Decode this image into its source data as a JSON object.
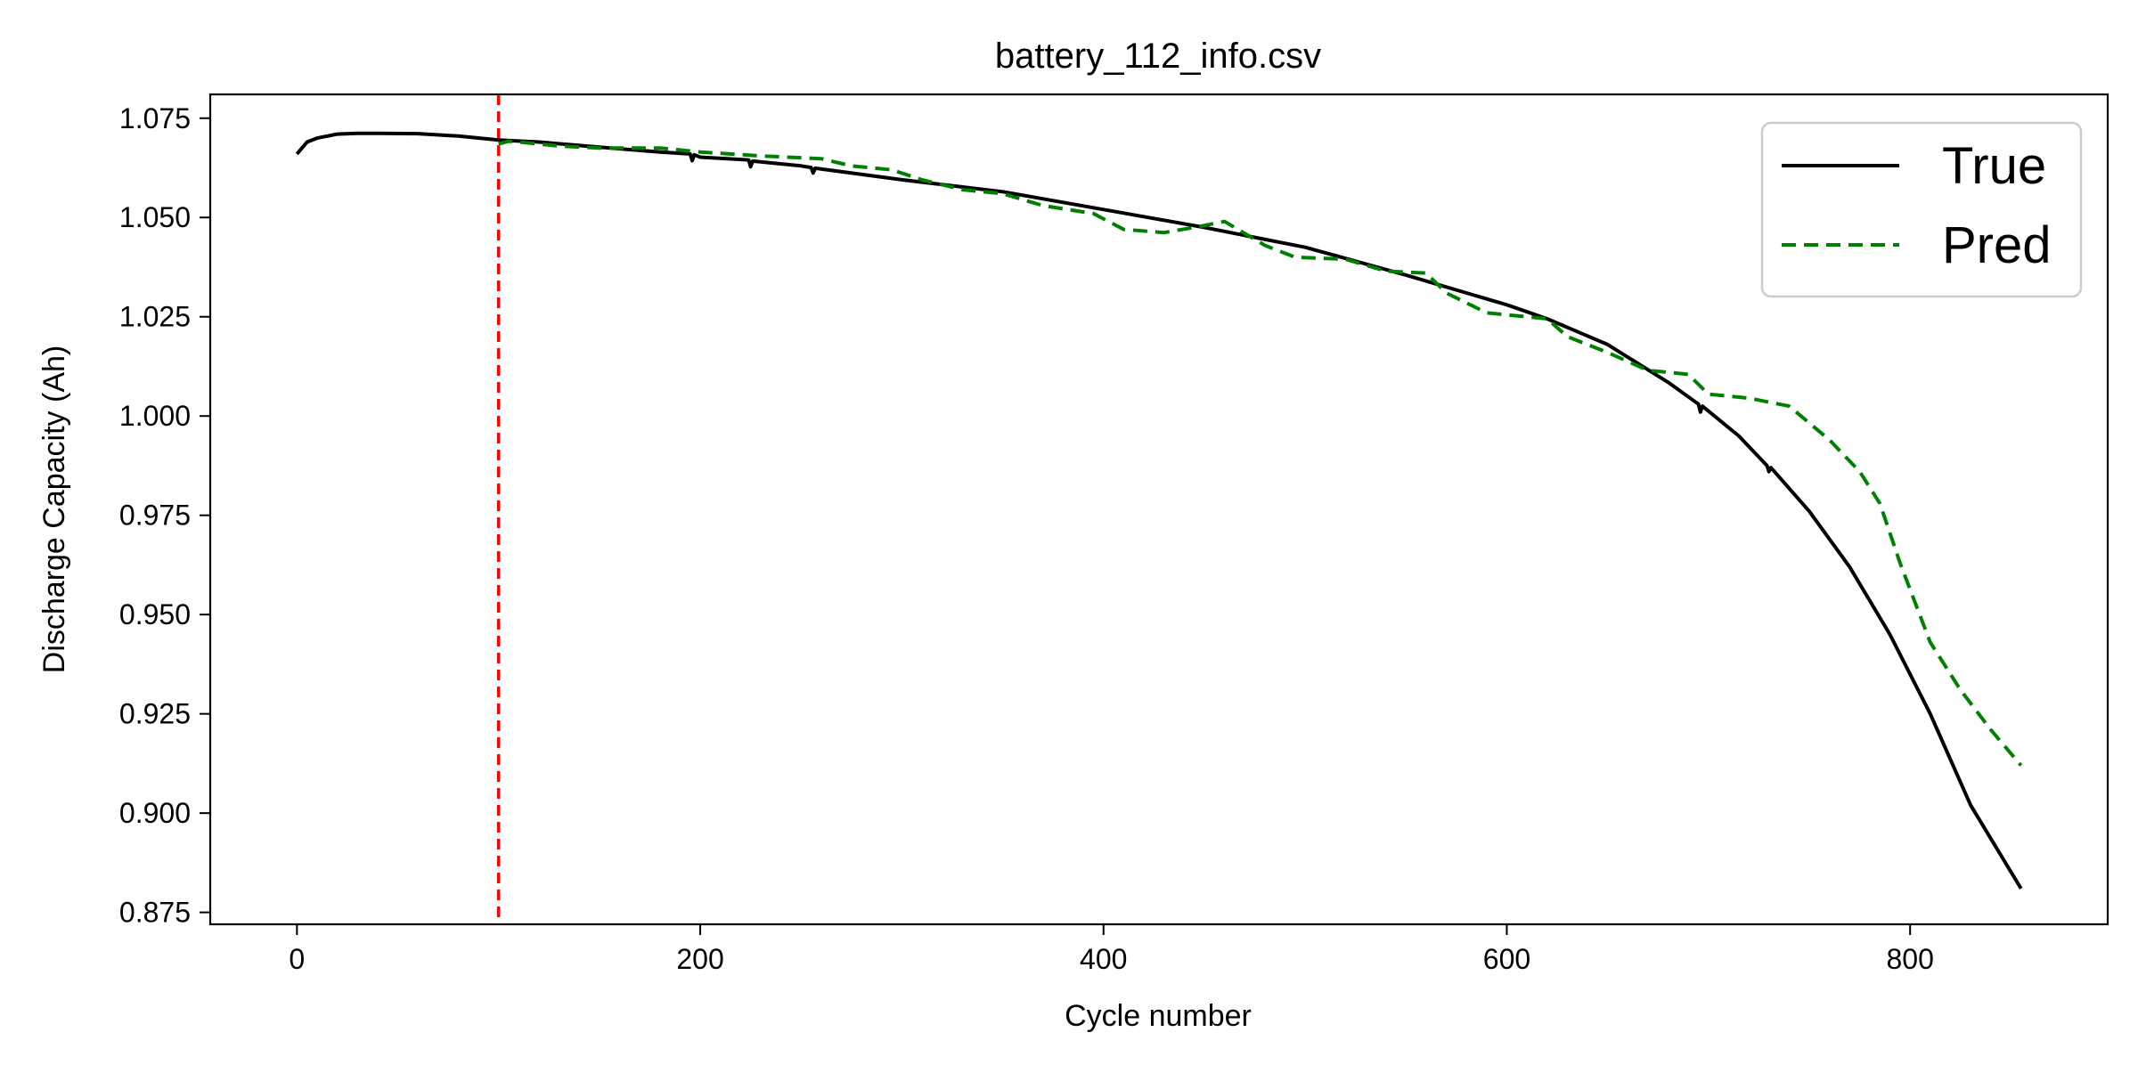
{
  "chart_data": {
    "type": "line",
    "title": "battery_112_info.csv",
    "xlabel": "Cycle number",
    "ylabel": "Discharge Capacity (Ah)",
    "xlim": [
      -43,
      898
    ],
    "ylim": [
      0.872,
      1.081
    ],
    "x_ticks": [
      0,
      200,
      400,
      600,
      800
    ],
    "y_ticks": [
      0.875,
      0.9,
      0.925,
      0.95,
      0.975,
      1.0,
      1.025,
      1.05,
      1.075
    ],
    "grid": false,
    "legend_position": "top-right",
    "vertical_marker": {
      "x": 100,
      "color": "#ff0000",
      "style": "dashed"
    },
    "series": [
      {
        "name": "True",
        "color": "#000000",
        "style": "solid",
        "points": [
          [
            0,
            1.066
          ],
          [
            5,
            1.069
          ],
          [
            10,
            1.07
          ],
          [
            20,
            1.071
          ],
          [
            30,
            1.0712
          ],
          [
            40,
            1.0712
          ],
          [
            60,
            1.0711
          ],
          [
            80,
            1.0705
          ],
          [
            100,
            1.0695
          ],
          [
            120,
            1.069
          ],
          [
            150,
            1.0677
          ],
          [
            180,
            1.0665
          ],
          [
            195,
            1.066
          ],
          [
            196,
            1.0643
          ],
          [
            197,
            1.0658
          ],
          [
            200,
            1.0652
          ],
          [
            224,
            1.0645
          ],
          [
            225,
            1.0628
          ],
          [
            226,
            1.0642
          ],
          [
            250,
            1.063
          ],
          [
            255,
            1.0626
          ],
          [
            256,
            1.0612
          ],
          [
            257,
            1.0624
          ],
          [
            300,
            1.0595
          ],
          [
            350,
            1.0565
          ],
          [
            400,
            1.052
          ],
          [
            450,
            1.0475
          ],
          [
            500,
            1.0425
          ],
          [
            550,
            1.0355
          ],
          [
            580,
            1.031
          ],
          [
            600,
            1.028
          ],
          [
            620,
            1.0245
          ],
          [
            650,
            1.018
          ],
          [
            680,
            1.0085
          ],
          [
            695,
            1.003
          ],
          [
            696,
            1.001
          ],
          [
            697,
            1.0025
          ],
          [
            715,
            0.995
          ],
          [
            729,
            0.9875
          ],
          [
            730,
            0.986
          ],
          [
            731,
            0.987
          ],
          [
            750,
            0.976
          ],
          [
            770,
            0.962
          ],
          [
            790,
            0.945
          ],
          [
            810,
            0.925
          ],
          [
            830,
            0.902
          ],
          [
            855,
            0.881
          ]
        ]
      },
      {
        "name": "Pred",
        "color": "#008000",
        "style": "dashed",
        "points": [
          [
            100,
            1.0685
          ],
          [
            105,
            1.0692
          ],
          [
            110,
            1.069
          ],
          [
            130,
            1.068
          ],
          [
            150,
            1.0675
          ],
          [
            180,
            1.0675
          ],
          [
            200,
            1.0665
          ],
          [
            230,
            1.0655
          ],
          [
            260,
            1.0648
          ],
          [
            275,
            1.063
          ],
          [
            295,
            1.062
          ],
          [
            310,
            1.0595
          ],
          [
            330,
            1.057
          ],
          [
            350,
            1.056
          ],
          [
            370,
            1.053
          ],
          [
            395,
            1.051
          ],
          [
            410,
            1.047
          ],
          [
            430,
            1.0462
          ],
          [
            445,
            1.0475
          ],
          [
            460,
            1.049
          ],
          [
            480,
            1.043
          ],
          [
            495,
            1.04
          ],
          [
            520,
            1.0395
          ],
          [
            540,
            1.0365
          ],
          [
            560,
            1.036
          ],
          [
            570,
            1.031
          ],
          [
            590,
            1.026
          ],
          [
            620,
            1.0245
          ],
          [
            630,
            1.02
          ],
          [
            650,
            1.016
          ],
          [
            670,
            1.0115
          ],
          [
            690,
            1.0105
          ],
          [
            700,
            1.0055
          ],
          [
            720,
            1.0045
          ],
          [
            740,
            1.0025
          ],
          [
            760,
            0.994
          ],
          [
            775,
            0.986
          ],
          [
            785,
            0.978
          ],
          [
            795,
            0.963
          ],
          [
            810,
            0.943
          ],
          [
            825,
            0.931
          ],
          [
            840,
            0.921
          ],
          [
            855,
            0.912
          ]
        ]
      }
    ]
  }
}
